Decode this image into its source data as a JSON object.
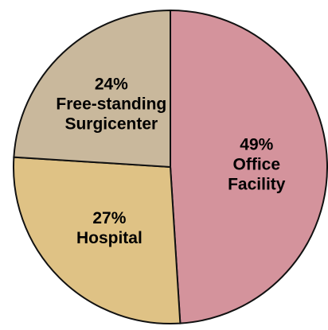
{
  "chart_data": {
    "type": "pie",
    "categories": [
      "Office Facility",
      "Hospital",
      "Free-standing Surgicenter"
    ],
    "values": [
      49,
      27,
      24
    ],
    "value_labels": [
      "49%",
      "27%",
      "24%"
    ],
    "colors": [
      "#d4939c",
      "#dfc285",
      "#c9b89c"
    ]
  }
}
